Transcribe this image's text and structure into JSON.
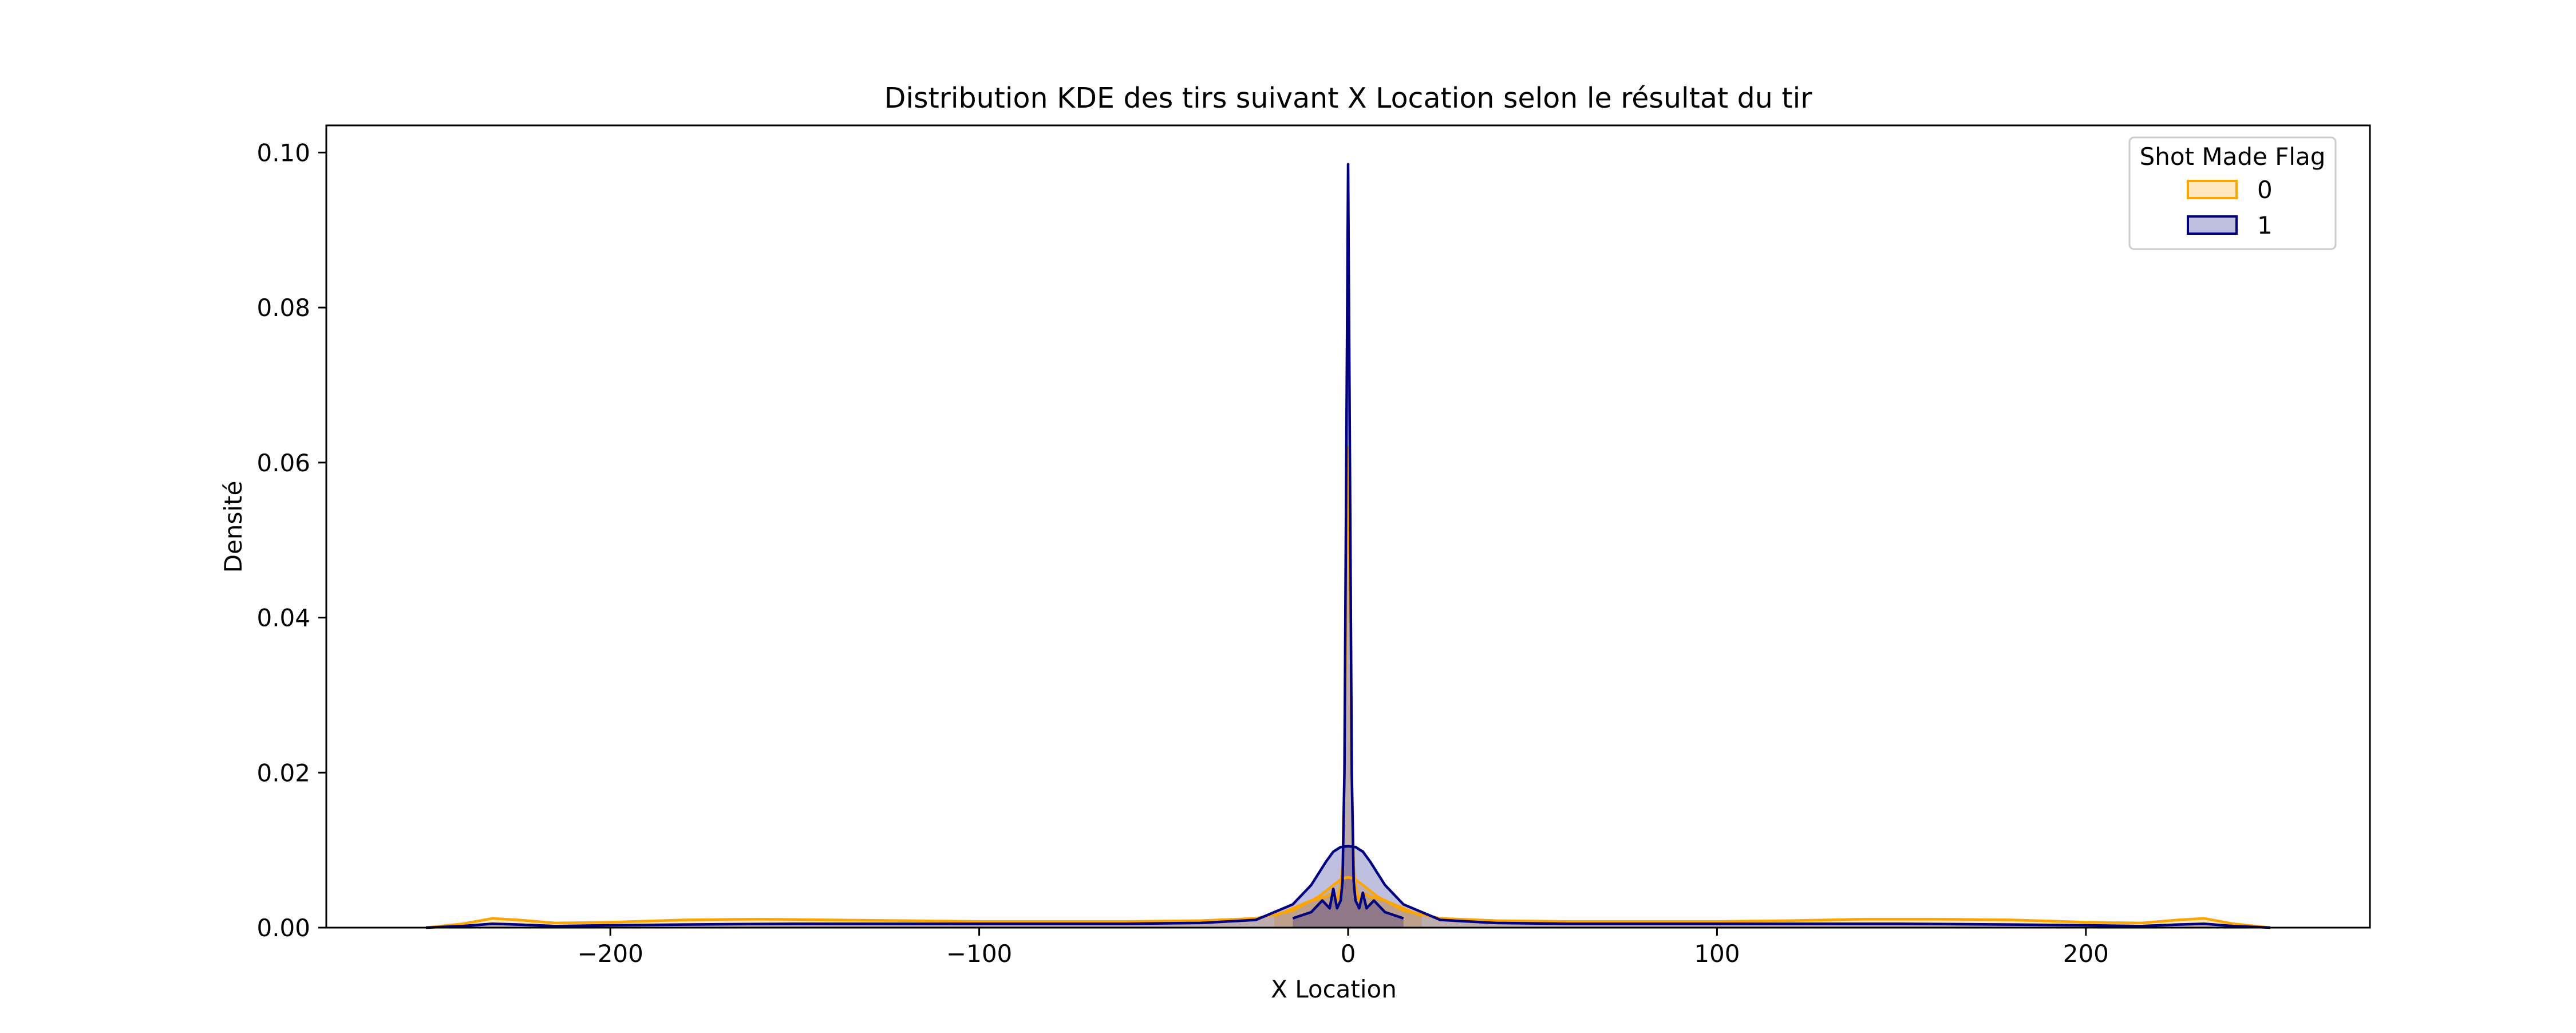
{
  "chart_data": {
    "type": "area",
    "title": "Distribution KDE des tirs suivant X Location selon le résultat du tir",
    "xlabel": "X Location",
    "ylabel": "Densité",
    "xlim": [
      -277,
      277
    ],
    "ylim": [
      0,
      0.1035
    ],
    "xticks": [
      -200,
      -100,
      0,
      100,
      200
    ],
    "xtick_labels": [
      "−200",
      "−100",
      "0",
      "100",
      "200"
    ],
    "yticks": [
      0.0,
      0.02,
      0.04,
      0.06,
      0.08,
      0.1
    ],
    "ytick_labels": [
      "0.00",
      "0.02",
      "0.04",
      "0.06",
      "0.08",
      "0.10"
    ],
    "grid": false,
    "legend": {
      "title": "Shot Made Flag",
      "placement": "top-right"
    },
    "series": [
      {
        "name": "0",
        "color": "#ffa500",
        "fill_alpha": 0.25,
        "broad_curve": {
          "x": [
            -250,
            -240,
            -232,
            -225,
            -215,
            -200,
            -180,
            -160,
            -140,
            -120,
            -100,
            -80,
            -60,
            -40,
            -25,
            -15,
            -8,
            -4,
            -2,
            -1,
            0,
            1,
            2,
            4,
            8,
            15,
            25,
            40,
            60,
            80,
            100,
            120,
            140,
            160,
            180,
            200,
            215,
            225,
            232,
            240,
            250
          ],
          "y": [
            0.0,
            0.0005,
            0.0012,
            0.001,
            0.0006,
            0.0007,
            0.001,
            0.0011,
            0.001,
            0.0009,
            0.0008,
            0.0008,
            0.0008,
            0.0009,
            0.0012,
            0.0022,
            0.004,
            0.0055,
            0.0062,
            0.0064,
            0.0065,
            0.0064,
            0.0062,
            0.0055,
            0.004,
            0.0022,
            0.0012,
            0.0009,
            0.0008,
            0.0008,
            0.0008,
            0.0009,
            0.0011,
            0.0011,
            0.001,
            0.0007,
            0.0006,
            0.001,
            0.0012,
            0.0005,
            0.0
          ]
        },
        "spike_curve": {
          "x": [
            -20,
            -15,
            -10,
            -6,
            -4,
            -3,
            -2,
            -1.5,
            -1,
            -0.5,
            0,
            0.5,
            1,
            1.5,
            2,
            3,
            4,
            6,
            10,
            15,
            20
          ],
          "y": [
            0.0015,
            0.0025,
            0.0035,
            0.004,
            0.0045,
            0.0035,
            0.0055,
            0.008,
            0.02,
            0.045,
            0.062,
            0.045,
            0.02,
            0.008,
            0.0055,
            0.0035,
            0.0045,
            0.004,
            0.0035,
            0.0025,
            0.0015
          ]
        }
      },
      {
        "name": "1",
        "color": "#000080",
        "fill_alpha": 0.25,
        "broad_curve": {
          "x": [
            -250,
            -240,
            -232,
            -225,
            -215,
            -200,
            -180,
            -150,
            -120,
            -100,
            -80,
            -60,
            -40,
            -25,
            -15,
            -10,
            -6,
            -4,
            -2,
            0,
            2,
            4,
            6,
            10,
            15,
            25,
            40,
            60,
            80,
            100,
            120,
            150,
            180,
            200,
            215,
            225,
            232,
            240,
            250
          ],
          "y": [
            0.0,
            0.0002,
            0.0005,
            0.0004,
            0.0002,
            0.0003,
            0.0004,
            0.0005,
            0.0005,
            0.0005,
            0.0005,
            0.0005,
            0.0006,
            0.001,
            0.003,
            0.0055,
            0.0085,
            0.0098,
            0.0104,
            0.0105,
            0.0104,
            0.0098,
            0.0085,
            0.0055,
            0.003,
            0.001,
            0.0006,
            0.0005,
            0.0005,
            0.0005,
            0.0005,
            0.0005,
            0.0004,
            0.0003,
            0.0002,
            0.0004,
            0.0005,
            0.0002,
            0.0
          ]
        },
        "spike_curve": {
          "x": [
            -15,
            -10,
            -7,
            -5,
            -4,
            -3,
            -2,
            -1.5,
            -1,
            -0.5,
            0,
            0.5,
            1,
            1.5,
            2,
            3,
            4,
            5,
            7,
            10,
            15
          ],
          "y": [
            0.0012,
            0.002,
            0.0035,
            0.0025,
            0.005,
            0.0025,
            0.0035,
            0.006,
            0.02,
            0.06,
            0.0985,
            0.06,
            0.02,
            0.006,
            0.0035,
            0.0025,
            0.0045,
            0.0025,
            0.0035,
            0.002,
            0.0012
          ]
        }
      }
    ]
  }
}
